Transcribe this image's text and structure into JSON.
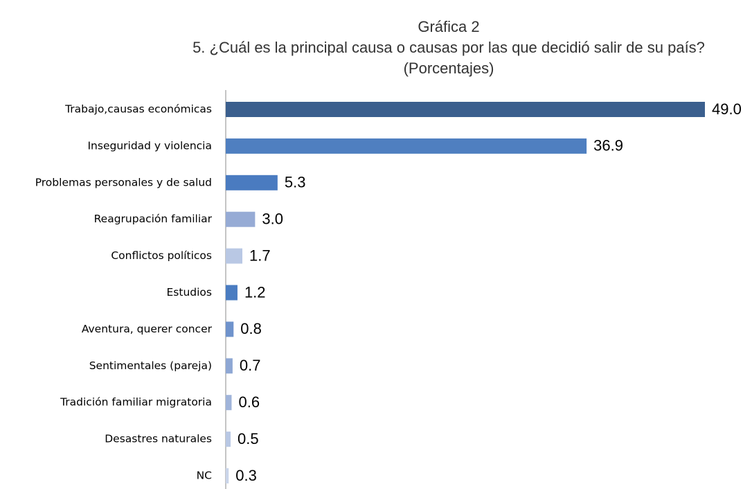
{
  "chart_data": {
    "type": "bar",
    "orientation": "horizontal",
    "title": "Gráfica 2",
    "subtitle": "5. ¿Cuál es la principal causa o causas por las que decidió salir de su país?",
    "subtitle2": "(Porcentajes)",
    "categories": [
      "Trabajo,causas económicas",
      "Inseguridad y violencia",
      "Problemas personales y de salud",
      "Reagrupación familiar",
      "Conflictos políticos",
      "Estudios",
      "Aventura, querer concer",
      "Sentimentales (pareja)",
      "Tradición familiar migratoria",
      "Desastres naturales",
      "NC"
    ],
    "values": [
      49,
      36.9,
      5.3,
      3,
      1.7,
      1.2,
      0.8,
      0.7,
      0.6,
      0.5,
      0.3
    ],
    "value_labels": [
      "49.0",
      "36.9",
      "5.3",
      "3.0",
      "1.7",
      "1.2",
      "0.8",
      "0.7",
      "0.6",
      "0.5",
      "0.3"
    ],
    "colors": [
      "#3b5f8e",
      "#4f7fc0",
      "#4a7bc0",
      "#96abd5",
      "#b9c8e4",
      "#4a7cc1",
      "#6f93cc",
      "#8ea7d4",
      "#a0b4da",
      "#b9c8e4",
      "#cad5ea"
    ]
  }
}
